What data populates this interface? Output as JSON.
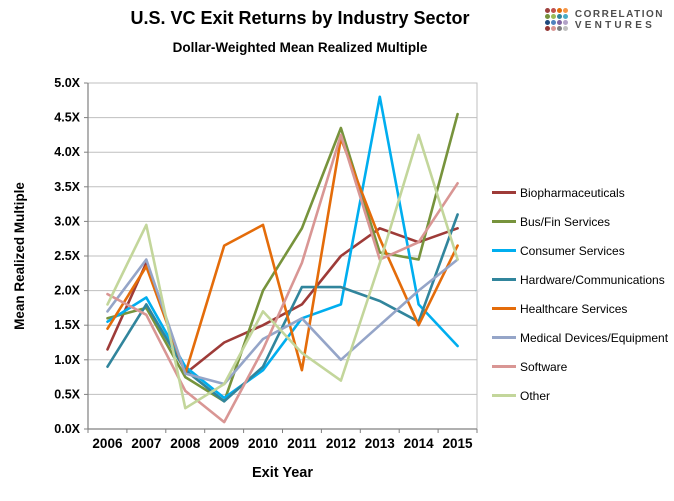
{
  "header": {
    "title": "U.S. VC Exit Returns by Industry Sector",
    "subtitle": "Dollar-Weighted Mean Realized Multiple"
  },
  "logo": {
    "line1": "CORRELATION",
    "line2": "VENTURES",
    "dot_colors": [
      "#9E413E",
      "#C0504D",
      "#E36C09",
      "#F79646",
      "#76923C",
      "#9BBB59",
      "#31859C",
      "#4BACC6",
      "#1F497D",
      "#4F81BD",
      "#8064A2",
      "#B2A2C7",
      "#943634",
      "#D99694",
      "#7F7F7F",
      "#BFBFBF"
    ]
  },
  "chart_data": {
    "type": "line",
    "title": "U.S. VC Exit Returns by Industry Sector",
    "subtitle": "Dollar-Weighted Mean Realized Multiple",
    "xlabel": "Exit Year",
    "ylabel": "Mean Realized Multiple",
    "x": [
      2006,
      2007,
      2008,
      2009,
      2010,
      2011,
      2012,
      2013,
      2014,
      2015
    ],
    "ylim": [
      0,
      5
    ],
    "ystep": 0.5,
    "ytick_suffix": "X",
    "grid": true,
    "legend_position": "right",
    "series": [
      {
        "name": "Biopharmaceuticals",
        "color": "#9E3B38",
        "values": [
          1.15,
          2.4,
          0.8,
          1.25,
          1.5,
          1.8,
          2.5,
          2.9,
          2.7,
          2.9
        ]
      },
      {
        "name": "Bus/Fin Services",
        "color": "#77933C",
        "values": [
          1.6,
          1.75,
          0.75,
          0.4,
          2.0,
          2.9,
          4.35,
          2.55,
          2.45,
          4.55
        ]
      },
      {
        "name": "Consumer Services",
        "color": "#00AEEF",
        "values": [
          1.55,
          1.9,
          0.9,
          0.45,
          0.85,
          1.6,
          1.8,
          4.8,
          1.8,
          1.2
        ]
      },
      {
        "name": "Hardware/Communications",
        "color": "#31859C",
        "values": [
          0.9,
          1.8,
          0.85,
          0.4,
          0.9,
          2.05,
          2.05,
          1.85,
          1.55,
          3.1
        ]
      },
      {
        "name": "Healthcare Services",
        "color": "#E46C0A",
        "values": [
          1.45,
          2.35,
          0.8,
          2.65,
          2.95,
          0.85,
          4.2,
          2.75,
          1.5,
          2.65
        ]
      },
      {
        "name": "Medical Devices/Equipment",
        "color": "#95A5C8",
        "values": [
          1.7,
          2.45,
          0.8,
          0.65,
          1.3,
          1.6,
          1.0,
          1.5,
          2.0,
          2.45
        ]
      },
      {
        "name": "Software",
        "color": "#D99694",
        "values": [
          1.95,
          1.65,
          0.55,
          0.1,
          1.15,
          2.4,
          4.25,
          2.45,
          2.7,
          3.55
        ]
      },
      {
        "name": "Other",
        "color": "#C3D69B",
        "values": [
          1.8,
          2.95,
          0.3,
          0.65,
          1.7,
          1.1,
          0.7,
          2.4,
          4.25,
          2.45
        ]
      }
    ]
  }
}
